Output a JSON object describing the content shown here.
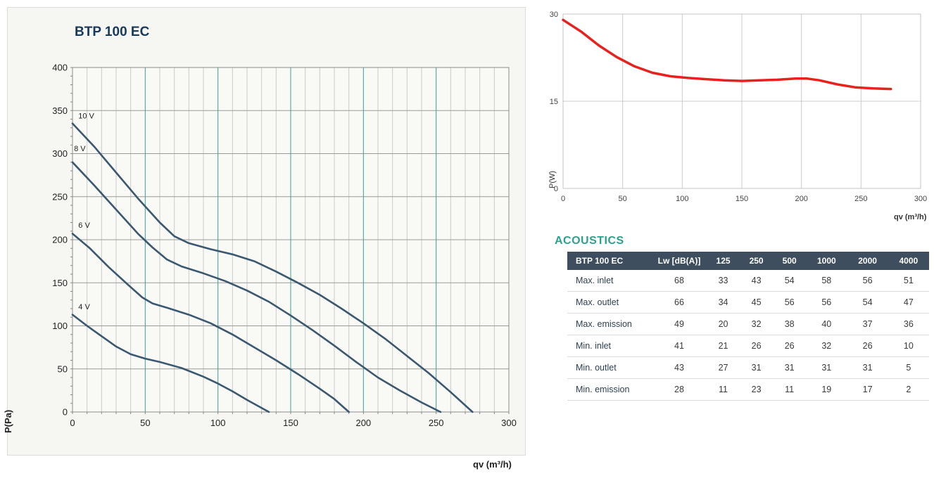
{
  "chart_data": [
    {
      "type": "line",
      "title": "BTP 100 EC",
      "xlabel": "qv (m³/h)",
      "ylabel": "P(Pa)",
      "xlim": [
        0,
        300
      ],
      "ylim": [
        0,
        400
      ],
      "xticks": [
        0,
        50,
        100,
        150,
        200,
        250,
        300
      ],
      "yticks": [
        0,
        50,
        100,
        150,
        200,
        250,
        300,
        350,
        400
      ],
      "minor_x_step": 10,
      "minor_y_step": 10,
      "grid": "on",
      "legend": "curve labels inline at left",
      "colors": {
        "major_grid": "#3aa09a",
        "minor_grid": "#cbcbcb",
        "h_grid": "#9a9a9a",
        "border": "#8c8c8c",
        "curve": "#3a5870",
        "tick": "#222222",
        "plot_bg": "#f9f9f5",
        "title": "#16395e"
      },
      "series": [
        {
          "name": "10 V",
          "label_pos": [
            4,
            341
          ],
          "points": [
            [
              0,
              335
            ],
            [
              15,
              308
            ],
            [
              30,
              278
            ],
            [
              45,
              248
            ],
            [
              60,
              220
            ],
            [
              70,
              204
            ],
            [
              80,
              196
            ],
            [
              95,
              189
            ],
            [
              110,
              183
            ],
            [
              125,
              175
            ],
            [
              140,
              163
            ],
            [
              155,
              150
            ],
            [
              170,
              136
            ],
            [
              185,
              120
            ],
            [
              200,
              103
            ],
            [
              215,
              85
            ],
            [
              230,
              65
            ],
            [
              245,
              45
            ],
            [
              260,
              23
            ],
            [
              275,
              0
            ]
          ]
        },
        {
          "name": "8 V",
          "label_pos": [
            1,
            303
          ],
          "points": [
            [
              0,
              290
            ],
            [
              15,
              263
            ],
            [
              30,
              235
            ],
            [
              45,
              207
            ],
            [
              55,
              191
            ],
            [
              65,
              177
            ],
            [
              75,
              169
            ],
            [
              90,
              161
            ],
            [
              105,
              152
            ],
            [
              120,
              141
            ],
            [
              135,
              128
            ],
            [
              150,
              112
            ],
            [
              165,
              95
            ],
            [
              180,
              77
            ],
            [
              195,
              58
            ],
            [
              210,
              40
            ],
            [
              225,
              25
            ],
            [
              240,
              11
            ],
            [
              253,
              0
            ]
          ]
        },
        {
          "name": "6 V",
          "label_pos": [
            4,
            214
          ],
          "points": [
            [
              0,
              207
            ],
            [
              12,
              190
            ],
            [
              25,
              168
            ],
            [
              38,
              148
            ],
            [
              48,
              133
            ],
            [
              55,
              126
            ],
            [
              65,
              121
            ],
            [
              80,
              113
            ],
            [
              95,
              103
            ],
            [
              110,
              90
            ],
            [
              125,
              75
            ],
            [
              140,
              60
            ],
            [
              155,
              44
            ],
            [
              170,
              27
            ],
            [
              180,
              15
            ],
            [
              190,
              0
            ]
          ]
        },
        {
          "name": "4 V",
          "label_pos": [
            4,
            119
          ],
          "points": [
            [
              0,
              113
            ],
            [
              10,
              100
            ],
            [
              20,
              88
            ],
            [
              30,
              76
            ],
            [
              40,
              67
            ],
            [
              50,
              62
            ],
            [
              60,
              58
            ],
            [
              75,
              51
            ],
            [
              90,
              41
            ],
            [
              100,
              33
            ],
            [
              110,
              24
            ],
            [
              120,
              14
            ],
            [
              135,
              0
            ]
          ]
        }
      ]
    },
    {
      "type": "line",
      "title": "",
      "xlabel": "qv (m³/h)",
      "ylabel": "P(W)",
      "xlim": [
        0,
        300
      ],
      "ylim": [
        0,
        30
      ],
      "xticks": [
        0,
        50,
        100,
        150,
        200,
        250,
        300
      ],
      "yticks": [
        0,
        15,
        30
      ],
      "grid": "on",
      "colors": {
        "major_grid": "#cccccc",
        "h_grid": "#cccccc",
        "border": "#c4c4c4",
        "curve": "#e8211d",
        "tick": "#444444",
        "plot_bg": "#ffffff"
      },
      "series": [
        {
          "name": "P(W)",
          "points": [
            [
              0,
              29
            ],
            [
              15,
              27
            ],
            [
              30,
              24.6
            ],
            [
              45,
              22.6
            ],
            [
              60,
              21
            ],
            [
              75,
              19.9
            ],
            [
              90,
              19.3
            ],
            [
              105,
              19
            ],
            [
              120,
              18.8
            ],
            [
              135,
              18.6
            ],
            [
              150,
              18.5
            ],
            [
              165,
              18.6
            ],
            [
              180,
              18.7
            ],
            [
              195,
              18.9
            ],
            [
              205,
              18.9
            ],
            [
              215,
              18.6
            ],
            [
              230,
              17.9
            ],
            [
              245,
              17.4
            ],
            [
              260,
              17.2
            ],
            [
              275,
              17.1
            ]
          ]
        }
      ]
    }
  ],
  "acoustics": {
    "heading": "ACOUSTICS",
    "heading_color": "#2aa38c",
    "table": {
      "header_bg": "#3e4e5e",
      "headers": [
        "BTP 100 EC",
        "Lw [dB(A)]",
        "125",
        "250",
        "500",
        "1000",
        "2000",
        "4000"
      ],
      "rows": [
        {
          "label": "Max. inlet",
          "values": [
            68,
            33,
            43,
            54,
            58,
            56,
            51
          ]
        },
        {
          "label": "Max. outlet",
          "values": [
            66,
            34,
            45,
            56,
            56,
            54,
            47
          ]
        },
        {
          "label": "Max. emission",
          "values": [
            49,
            20,
            32,
            38,
            40,
            37,
            36
          ]
        },
        {
          "label": "Min. inlet",
          "values": [
            41,
            21,
            26,
            26,
            32,
            26,
            10
          ]
        },
        {
          "label": "Min. outlet",
          "values": [
            43,
            27,
            31,
            31,
            31,
            31,
            5
          ]
        },
        {
          "label": "Min. emission",
          "values": [
            28,
            11,
            23,
            11,
            19,
            17,
            2
          ]
        }
      ]
    }
  }
}
